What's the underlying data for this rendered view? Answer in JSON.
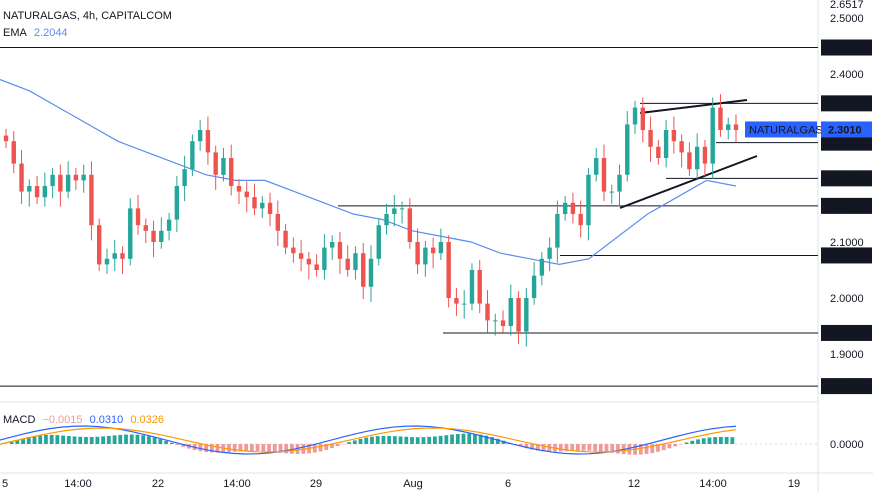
{
  "legend": {
    "symbol": "NATURALGAS, 4h, CAPITALCOM",
    "ema_label": "EMA",
    "ema_value": "2.2044",
    "macd_label": "MACD",
    "macd_hist": "−0.0015",
    "macd_line": "0.0310",
    "macd_signal": "0.0326"
  },
  "colors": {
    "up": "#26a69a",
    "down": "#ef5350",
    "ema": "#5b8def",
    "macd_line": "#2962ff",
    "signal_line": "#ff9800",
    "hist_up": "#26a69a",
    "hist_down": "#ef9a9a",
    "price_badge": "#2962ff"
  },
  "price_axis": {
    "ticks": [
      "2.5000",
      "2.4000",
      "2.1000",
      "2.0000",
      "1.9000"
    ],
    "top_partial": "2.6517"
  },
  "macd_axis": {
    "ticks": [
      "0.0000"
    ]
  },
  "time_axis": {
    "labels": [
      "5",
      "14:00",
      "22",
      "14:00",
      "29",
      "Aug",
      "6",
      "12",
      "14:00",
      "19"
    ]
  },
  "current_price": {
    "symbol": "NATURALGAS",
    "value": "2.3010"
  },
  "levels": [
    "2.4473",
    "2.3476",
    "2.2774",
    "2.2137",
    "2.1645",
    "2.0760",
    "1.9376",
    "1.8427"
  ],
  "chart_data": {
    "type": "candlestick",
    "title": "NATURALGAS, 4h, CAPITALCOM",
    "ylim": [
      1.81,
      2.52
    ],
    "grid": false,
    "ohlc_close_approx": [
      2.28,
      2.24,
      2.19,
      2.2,
      2.18,
      2.2,
      2.22,
      2.19,
      2.22,
      2.21,
      2.22,
      2.13,
      2.06,
      2.07,
      2.08,
      2.07,
      2.16,
      2.13,
      2.12,
      2.1,
      2.12,
      2.14,
      2.2,
      2.23,
      2.28,
      2.3,
      2.26,
      2.22,
      2.25,
      2.2,
      2.19,
      2.18,
      2.16,
      2.17,
      2.15,
      2.12,
      2.09,
      2.08,
      2.07,
      2.06,
      2.05,
      2.09,
      2.1,
      2.07,
      2.05,
      2.08,
      2.02,
      2.07,
      2.13,
      2.15,
      2.16,
      2.16,
      2.1,
      2.06,
      2.09,
      2.08,
      2.1,
      2.0,
      1.99,
      1.99,
      2.05,
      1.99,
      1.96,
      1.96,
      1.95,
      2.0,
      1.94,
      2.0,
      2.04,
      2.07,
      2.09,
      2.15,
      2.17,
      2.15,
      2.13,
      2.22,
      2.25,
      2.19,
      2.19,
      2.22,
      2.31,
      2.34,
      2.3,
      2.27,
      2.25,
      2.3,
      2.28,
      2.26,
      2.23,
      2.27,
      2.24,
      2.34,
      2.3,
      2.31,
      2.3
    ],
    "ema": [
      2.39,
      2.37,
      2.34,
      2.31,
      2.28,
      2.26,
      2.24,
      2.22,
      2.21,
      2.21,
      2.19,
      2.17,
      2.15,
      2.14,
      2.12,
      2.11,
      2.1,
      2.08,
      2.07,
      2.06,
      2.07,
      2.11,
      2.15,
      2.18,
      2.21,
      2.2
    ]
  }
}
